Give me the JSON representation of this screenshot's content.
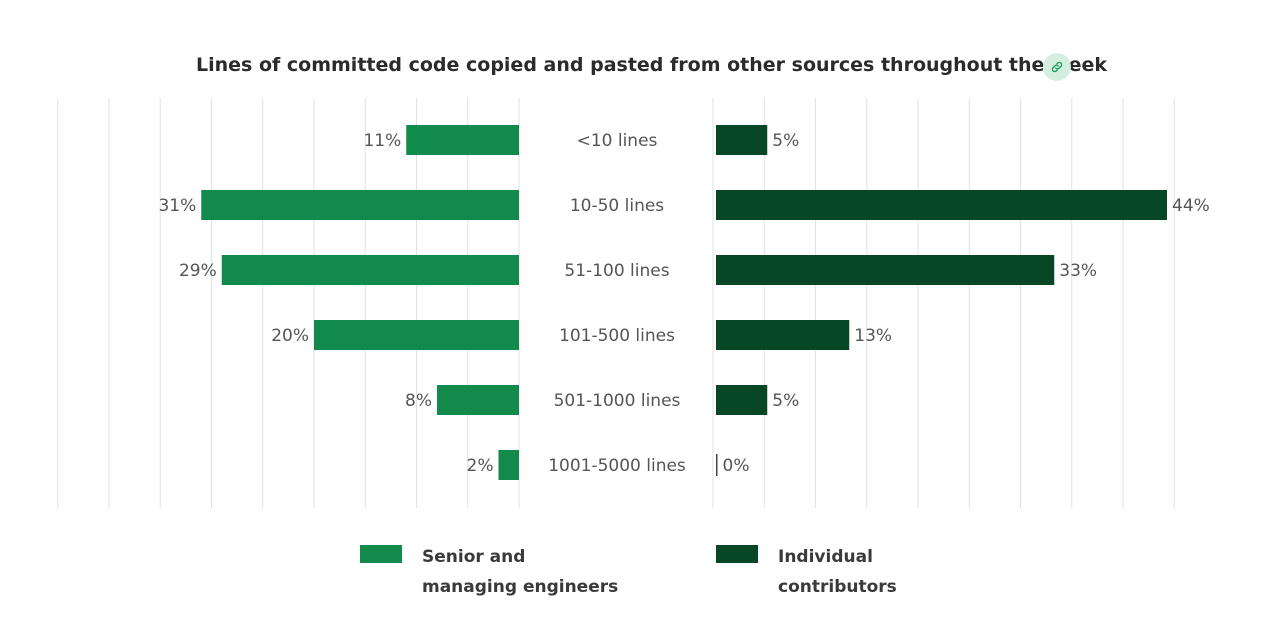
{
  "title": "Lines of committed code copied and pasted from other sources throughout the week",
  "colors": {
    "senior": "#128a4b",
    "individual": "#084726",
    "grid": "#e2e2e2",
    "link_bg": "#d4efe0",
    "link_icon": "#1f9d5c"
  },
  "link_icon": "link-icon",
  "legend": [
    {
      "label": "Senior and managing engineers",
      "color": "#128a4b"
    },
    {
      "label": "Individual contributors",
      "color": "#084726"
    }
  ],
  "chart_data": {
    "type": "bar",
    "orientation": "horizontal-diverging",
    "title": "Lines of committed code copied and pasted from other sources throughout the week",
    "categories": [
      "<10 lines",
      "10-50 lines",
      "51-100 lines",
      "101-500 lines",
      "501-1000 lines",
      "1001-5000 lines"
    ],
    "series": [
      {
        "name": "Senior and managing engineers",
        "values": [
          11,
          31,
          29,
          20,
          8,
          2
        ],
        "labels": [
          "11%",
          "31%",
          "29%",
          "20%",
          "8%",
          "2%"
        ],
        "side": "left"
      },
      {
        "name": "Individual contributors",
        "values": [
          5,
          44,
          33,
          13,
          5,
          0
        ],
        "labels": [
          "5%",
          "44%",
          "33%",
          "13%",
          "5%",
          "0%"
        ],
        "side": "right"
      }
    ],
    "unit": "%",
    "grid": true,
    "legend_position": "bottom-center"
  }
}
